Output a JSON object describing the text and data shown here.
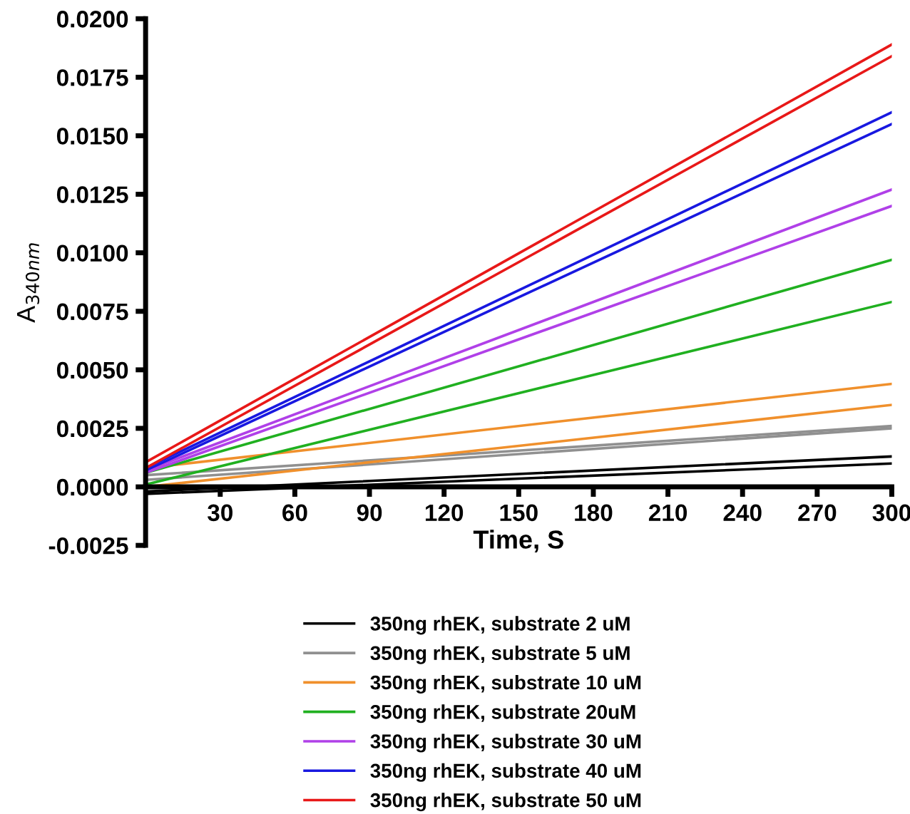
{
  "chart_data": {
    "type": "line",
    "xlabel": "Time, S",
    "ylabel": "A$_{340nm}$",
    "x": [
      0,
      300
    ],
    "xlim": [
      0,
      300
    ],
    "xticks": [
      30,
      60,
      90,
      120,
      150,
      180,
      210,
      240,
      270,
      300
    ],
    "ylim": [
      -0.0025,
      0.02
    ],
    "yticks": [
      {
        "value": -0.0025,
        "label": "-0.0025"
      },
      {
        "value": 0,
        "label": "0.0000"
      },
      {
        "value": 0.0025,
        "label": "0.0025"
      },
      {
        "value": 0.005,
        "label": "0.0050"
      },
      {
        "value": 0.0075,
        "label": "0.0075"
      },
      {
        "value": 0.01,
        "label": "0.0100"
      },
      {
        "value": 0.0125,
        "label": "0.0125"
      },
      {
        "value": 0.015,
        "label": "0.0150"
      },
      {
        "value": 0.0175,
        "label": "0.0175"
      },
      {
        "value": 0.02,
        "label": "0.0200"
      }
    ],
    "grid": false,
    "legend": "bottom",
    "marker": "none",
    "line_style": "solid",
    "series": [
      {
        "name": "350ng rhEK, substrate 2 uM",
        "color": "#000000",
        "values": [
          -0.0002,
          0.0013
        ]
      },
      {
        "color": "#000000",
        "values": [
          -0.0003,
          0.001
        ]
      },
      {
        "name": "350ng rhEK, substrate 5 uM",
        "color": "#909090",
        "values": [
          0.0005,
          0.0026
        ]
      },
      {
        "color": "#909090",
        "values": [
          0.0003,
          0.0025
        ]
      },
      {
        "name": "350ng rhEK, substrate 10 uM",
        "color": "#f0902c",
        "values": [
          0.0008,
          0.0044
        ]
      },
      {
        "color": "#f0902c",
        "values": [
          0.0,
          0.0035
        ]
      },
      {
        "name": "350ng rhEK, substrate 20uM",
        "color": "#20b020",
        "values": [
          0.0006,
          0.0097
        ]
      },
      {
        "color": "#20b020",
        "values": [
          0.0001,
          0.0079
        ]
      },
      {
        "name": "350ng rhEK, substrate 30 uM",
        "color": "#b040e8",
        "values": [
          0.0007,
          0.0127
        ]
      },
      {
        "color": "#b040e8",
        "values": [
          0.0006,
          0.012
        ]
      },
      {
        "name": "350ng rhEK, substrate 40 uM",
        "color": "#1818e0",
        "values": [
          0.0008,
          0.016
        ]
      },
      {
        "color": "#1818e0",
        "values": [
          0.0007,
          0.0155
        ]
      },
      {
        "name": "350ng rhEK, substrate 50 uM",
        "color": "#e81818",
        "values": [
          0.00105,
          0.0189
        ]
      },
      {
        "color": "#e81818",
        "values": [
          0.0008,
          0.0184
        ]
      }
    ]
  }
}
